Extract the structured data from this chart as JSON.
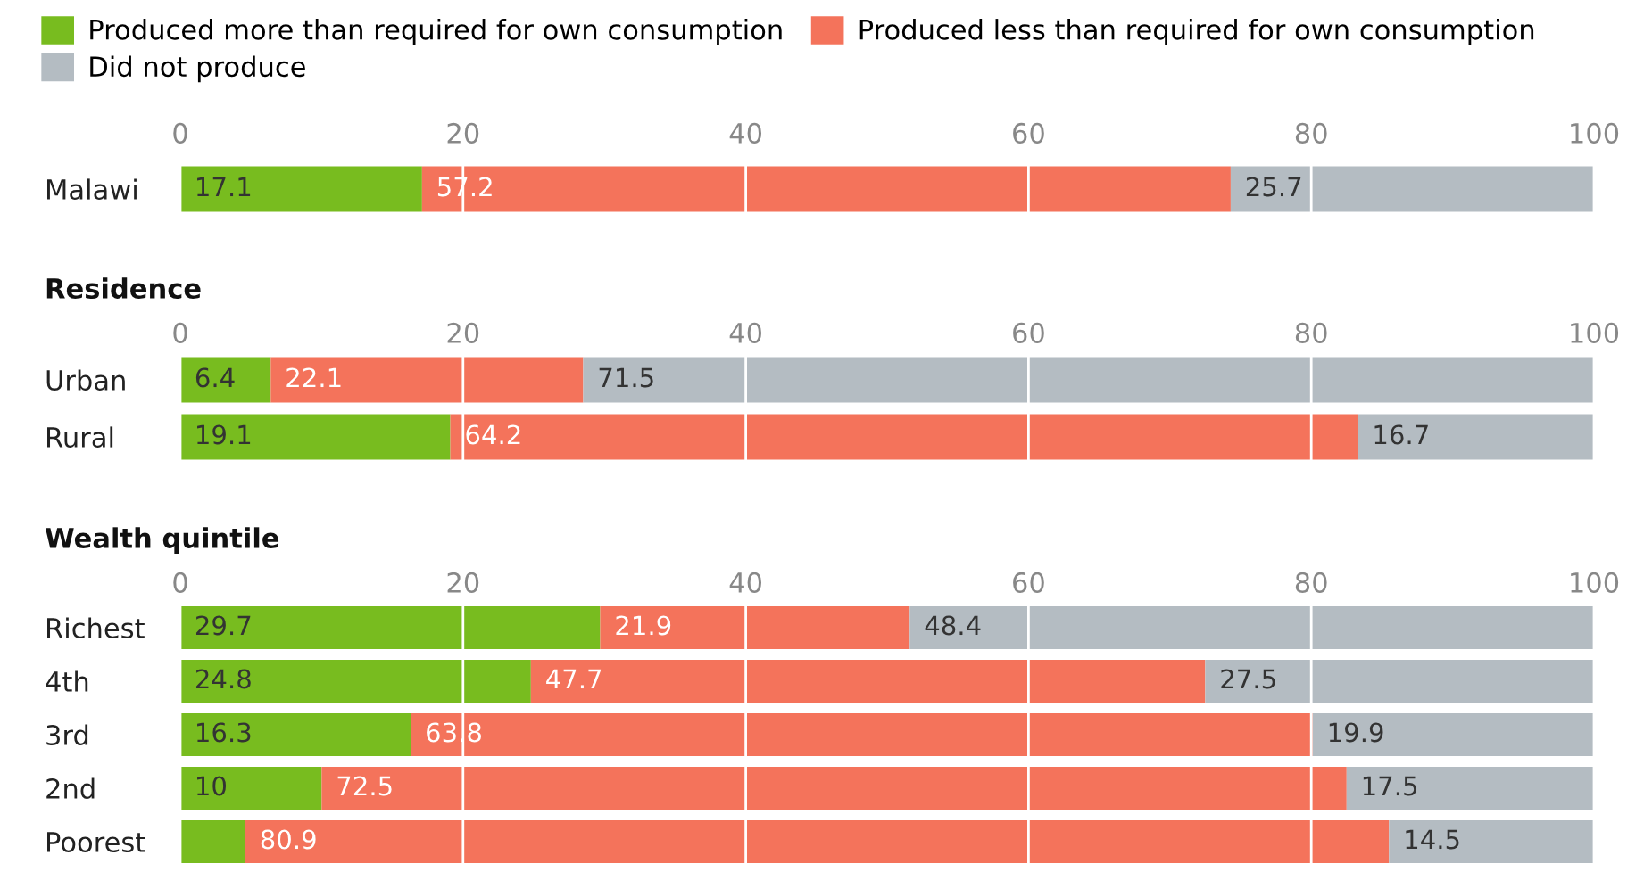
{
  "chart_data": [
    {
      "type": "bar",
      "orientation": "horizontal",
      "stacked": true,
      "categories": [
        "Malawi"
      ],
      "xlim": [
        0,
        100
      ],
      "xticks": [
        0,
        20,
        40,
        60,
        80,
        100
      ],
      "grid": "x",
      "legend": "top",
      "data_labels": true,
      "series": [
        {
          "name": "Produced more than required for own consumption",
          "color": "#78bc1f",
          "values": [
            17.1
          ]
        },
        {
          "name": "Produced less than required for own consumption",
          "color": "#f4735b",
          "values": [
            57.2
          ]
        },
        {
          "name": "Did not produce",
          "color": "#b4bcc2",
          "values": [
            25.7
          ]
        }
      ]
    },
    {
      "type": "bar",
      "orientation": "horizontal",
      "stacked": true,
      "title": "Residence",
      "categories": [
        "Urban",
        "Rural"
      ],
      "xlim": [
        0,
        100
      ],
      "xticks": [
        0,
        20,
        40,
        60,
        80,
        100
      ],
      "grid": "x",
      "data_labels": true,
      "series": [
        {
          "color": "#78bc1f",
          "values": [
            6.4,
            19.1
          ]
        },
        {
          "color": "#f4735b",
          "values": [
            22.1,
            64.2
          ]
        },
        {
          "color": "#b4bcc2",
          "values": [
            71.5,
            16.7
          ]
        }
      ]
    },
    {
      "type": "bar",
      "orientation": "horizontal",
      "stacked": true,
      "title": "Wealth quintile",
      "categories": [
        "Richest",
        "4th",
        "3rd",
        "2nd",
        "Poorest"
      ],
      "xlim": [
        0,
        100
      ],
      "xticks": [
        0,
        20,
        40,
        60,
        80,
        100
      ],
      "grid": "x",
      "series": [
        {
          "color": "#78bc1f",
          "values": [
            29.7,
            24.8,
            16.3,
            10,
            4.6
          ],
          "value_labels": [
            "29.7",
            "24.8",
            "16.3",
            "10",
            null
          ]
        },
        {
          "color": "#f4735b",
          "values": [
            21.9,
            47.7,
            63.8,
            72.5,
            80.9
          ],
          "value_labels": [
            "21.9",
            "47.7",
            "63.8",
            "72.5",
            "80.9"
          ]
        },
        {
          "color": "#b4bcc2",
          "values": [
            48.4,
            27.5,
            19.9,
            17.5,
            14.5
          ],
          "value_labels": [
            "48.4",
            "27.5",
            "19.9",
            "17.5",
            "14.5"
          ]
        }
      ]
    }
  ]
}
